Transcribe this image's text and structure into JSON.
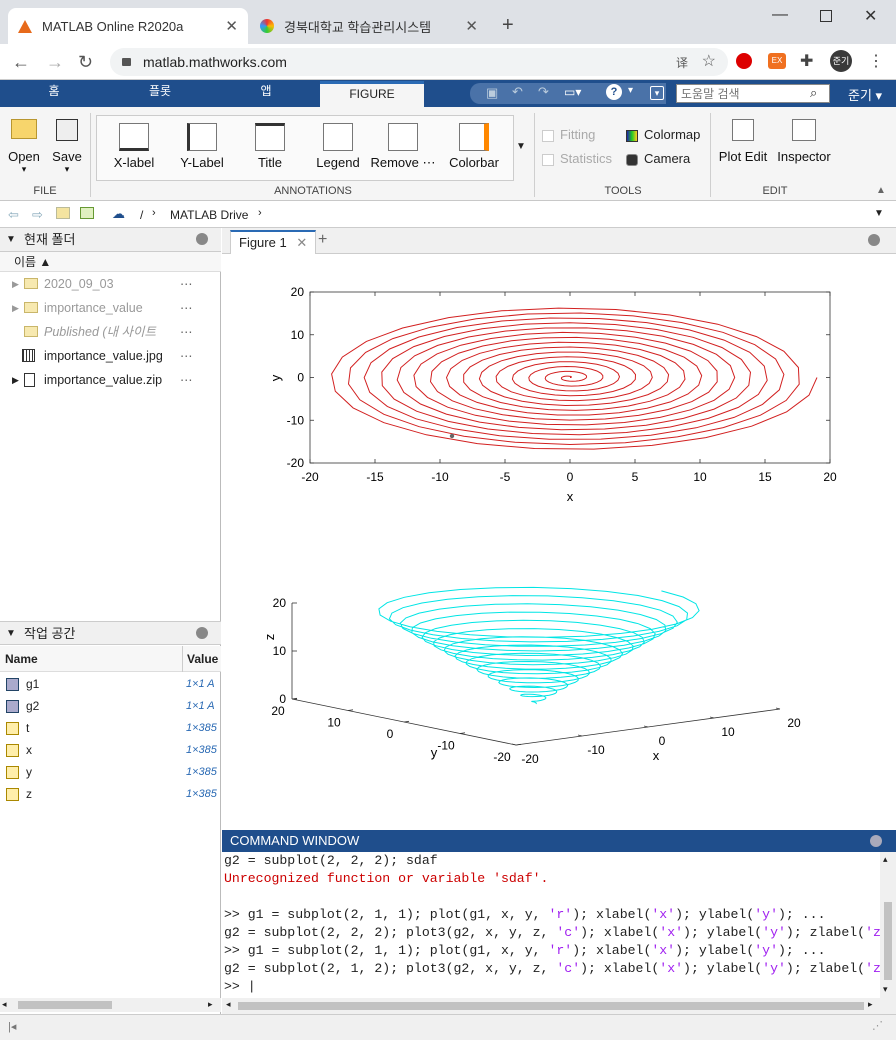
{
  "browser": {
    "tabs": [
      {
        "title": "MATLAB Online R2020a"
      },
      {
        "title": "경북대학교 학습관리시스템"
      }
    ],
    "url": "matlab.mathworks.com",
    "profile": "준기"
  },
  "matlab_tabs": [
    "홈",
    "플롯",
    "앱",
    "FIGURE"
  ],
  "search_placeholder": "도움말 검색",
  "user_menu": "준기",
  "ribbon": {
    "file": {
      "open": "Open",
      "save": "Save",
      "label": "FILE"
    },
    "annotations": {
      "items": [
        "X-label",
        "Y-Label",
        "Title",
        "Legend",
        "Remove ⋯",
        "Colorbar"
      ],
      "label": "ANNOTATIONS"
    },
    "tools": {
      "fitting": "Fitting",
      "statistics": "Statistics",
      "colormap": "Colormap",
      "camera": "Camera",
      "label": "TOOLS"
    },
    "edit": {
      "plot_edit": "Plot Edit",
      "inspector": "Inspector",
      "label": "EDIT"
    }
  },
  "path": {
    "sep": "/",
    "folder": "MATLAB Drive"
  },
  "current_folder": {
    "title": "현재 폴더",
    "column": "이름",
    "items": [
      {
        "name": "2020_09_03",
        "type": "folder"
      },
      {
        "name": "importance_value",
        "type": "folder"
      },
      {
        "name": "Published (내 사이트",
        "type": "folder"
      },
      {
        "name": "importance_value.jpg",
        "type": "image"
      },
      {
        "name": "importance_value.zip",
        "type": "zip"
      }
    ]
  },
  "workspace": {
    "title": "작업 공간",
    "columns": [
      "Name",
      "Value"
    ],
    "vars": [
      {
        "name": "g1",
        "value": "1×1 A"
      },
      {
        "name": "g2",
        "value": "1×1 A"
      },
      {
        "name": "t",
        "value": "1×385"
      },
      {
        "name": "x",
        "value": "1×385"
      },
      {
        "name": "y",
        "value": "1×385"
      },
      {
        "name": "z",
        "value": "1×385"
      }
    ]
  },
  "figure": {
    "tab": "Figure 1",
    "plot1": {
      "xlabel": "x",
      "ylabel": "y",
      "xticks": [
        "-20",
        "-15",
        "-10",
        "-5",
        "0",
        "5",
        "10",
        "15",
        "20"
      ],
      "yticks": [
        "20",
        "10",
        "0",
        "-10",
        "-20"
      ],
      "color": "#d22020"
    },
    "plot2": {
      "xlabel": "x",
      "ylabel": "y",
      "zlabel": "z",
      "zticks": [
        "20",
        "10",
        "0"
      ],
      "yticks": [
        "20",
        "10",
        "0",
        "-10",
        "-20"
      ],
      "xticks": [
        "-20",
        "-10",
        "0",
        "10",
        "20"
      ],
      "color": "#00e5e5"
    }
  },
  "command_window": {
    "title": "COMMAND WINDOW",
    "lines": [
      [
        {
          "t": "g2 = subplot(2, 2, 2); sdaf"
        }
      ],
      [
        {
          "t": "Unrecognized function or variable 'sdaf'.",
          "c": "err"
        }
      ],
      [
        {
          "t": " "
        }
      ],
      [
        {
          "t": ">> g1 = subplot(2, 1, 1); plot(g1, x, y, "
        },
        {
          "t": "'r'",
          "c": "str"
        },
        {
          "t": "); xlabel("
        },
        {
          "t": "'x'",
          "c": "str"
        },
        {
          "t": "); ylabel("
        },
        {
          "t": "'y'",
          "c": "str"
        },
        {
          "t": "); ..."
        }
      ],
      [
        {
          "t": "g2 = subplot(2, 2, 2); plot3(g2, x, y, z, "
        },
        {
          "t": "'c'",
          "c": "str"
        },
        {
          "t": "); xlabel("
        },
        {
          "t": "'x'",
          "c": "str"
        },
        {
          "t": "); ylabel("
        },
        {
          "t": "'y'",
          "c": "str"
        },
        {
          "t": "); zlabel("
        },
        {
          "t": "'z'",
          "c": "str"
        },
        {
          "t": ")"
        }
      ],
      [
        {
          "t": ">> g1 = subplot(2, 1, 1); plot(g1, x, y, "
        },
        {
          "t": "'r'",
          "c": "str"
        },
        {
          "t": "); xlabel("
        },
        {
          "t": "'x'",
          "c": "str"
        },
        {
          "t": "); ylabel("
        },
        {
          "t": "'y'",
          "c": "str"
        },
        {
          "t": "); ..."
        }
      ],
      [
        {
          "t": "g2 = subplot(2, 1, 2); plot3(g2, x, y, z, "
        },
        {
          "t": "'c'",
          "c": "str"
        },
        {
          "t": "); xlabel("
        },
        {
          "t": "'x'",
          "c": "str"
        },
        {
          "t": "); ylabel("
        },
        {
          "t": "'y'",
          "c": "str"
        },
        {
          "t": "); zlabel("
        },
        {
          "t": "'z'",
          "c": "str"
        },
        {
          "t": ")"
        }
      ],
      [
        {
          "t": ">> "
        }
      ]
    ]
  }
}
